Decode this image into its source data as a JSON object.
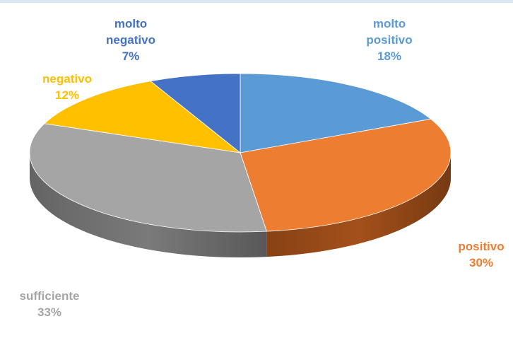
{
  "chart_data": {
    "type": "pie",
    "slices": [
      {
        "label_lines": [
          "molto",
          "positivo"
        ],
        "percent_label": "18%",
        "value": 18,
        "color": "#5b9bd5",
        "side_color": "#3c74a8",
        "label_color": "#5b9bd5"
      },
      {
        "label_lines": [
          "positivo"
        ],
        "percent_label": "30%",
        "value": 30,
        "color": "#ed7d31",
        "side_color": "#a4501a",
        "label_color": "#ed7d31"
      },
      {
        "label_lines": [
          "sufficiente"
        ],
        "percent_label": "33%",
        "value": 33,
        "color": "#a5a5a5",
        "side_color": "#7a7a7a",
        "label_color": "#a5a5a5"
      },
      {
        "label_lines": [
          "negativo"
        ],
        "percent_label": "12%",
        "value": 12,
        "color": "#ffc000",
        "side_color": "#b88a00",
        "label_color": "#ffc000"
      },
      {
        "label_lines": [
          "molto",
          "negativo"
        ],
        "percent_label": "7%",
        "value": 7,
        "color": "#4472c4",
        "side_color": "#2e4f8a",
        "label_color": "#4472c4"
      }
    ],
    "start": "top",
    "direction": "clockwise",
    "style": "3d"
  }
}
